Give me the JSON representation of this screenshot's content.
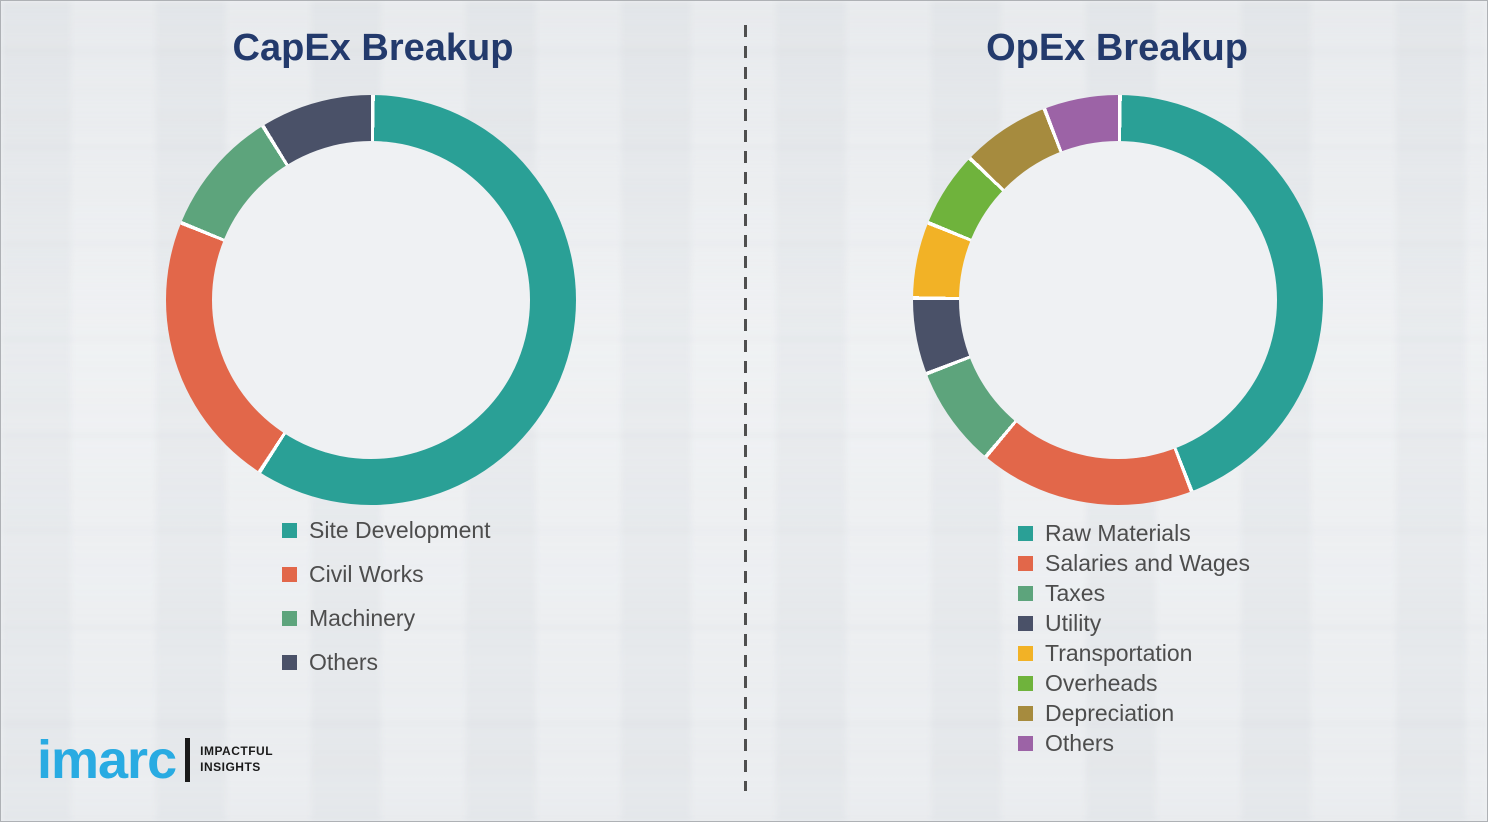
{
  "page": {
    "background_color": "#eff1f3",
    "border_color": "#aeb1b5",
    "divider_color": "#4f4f4f",
    "title_color": "#233A6C",
    "legend_text_color": "#4D4D4D"
  },
  "chart_data": [
    {
      "type": "pie",
      "donut": true,
      "title": "CapEx Breakup",
      "labels": [
        "Site Development",
        "Civil Works",
        "Machinery",
        "Others"
      ],
      "values": [
        59,
        22,
        10,
        9
      ],
      "unit": "percent",
      "colors": [
        "#2AA096",
        "#E2674A",
        "#5DA47C",
        "#4A5168"
      ],
      "start_angle_deg": 0,
      "direction": "clockwise",
      "legend_position": "below-left"
    },
    {
      "type": "pie",
      "donut": true,
      "title": "OpEx Breakup",
      "labels": [
        "Raw Materials",
        "Salaries and Wages",
        "Taxes",
        "Utility",
        "Transportation",
        "Overheads",
        "Depreciation",
        "Others"
      ],
      "values": [
        44,
        17,
        8,
        6,
        6,
        6,
        7,
        6
      ],
      "unit": "percent",
      "colors": [
        "#2AA096",
        "#E2674A",
        "#5DA47C",
        "#4A5168",
        "#F2B226",
        "#6FB33C",
        "#A68B3E",
        "#9C63A6"
      ],
      "start_angle_deg": 0,
      "direction": "clockwise",
      "legend_position": "below-left"
    }
  ],
  "logo": {
    "brand": "imarc",
    "brand_color": "#29ABE2",
    "tagline_line1": "IMPACTFUL",
    "tagline_line2": "INSIGHTS",
    "tagline_color": "#1A1A1A"
  }
}
